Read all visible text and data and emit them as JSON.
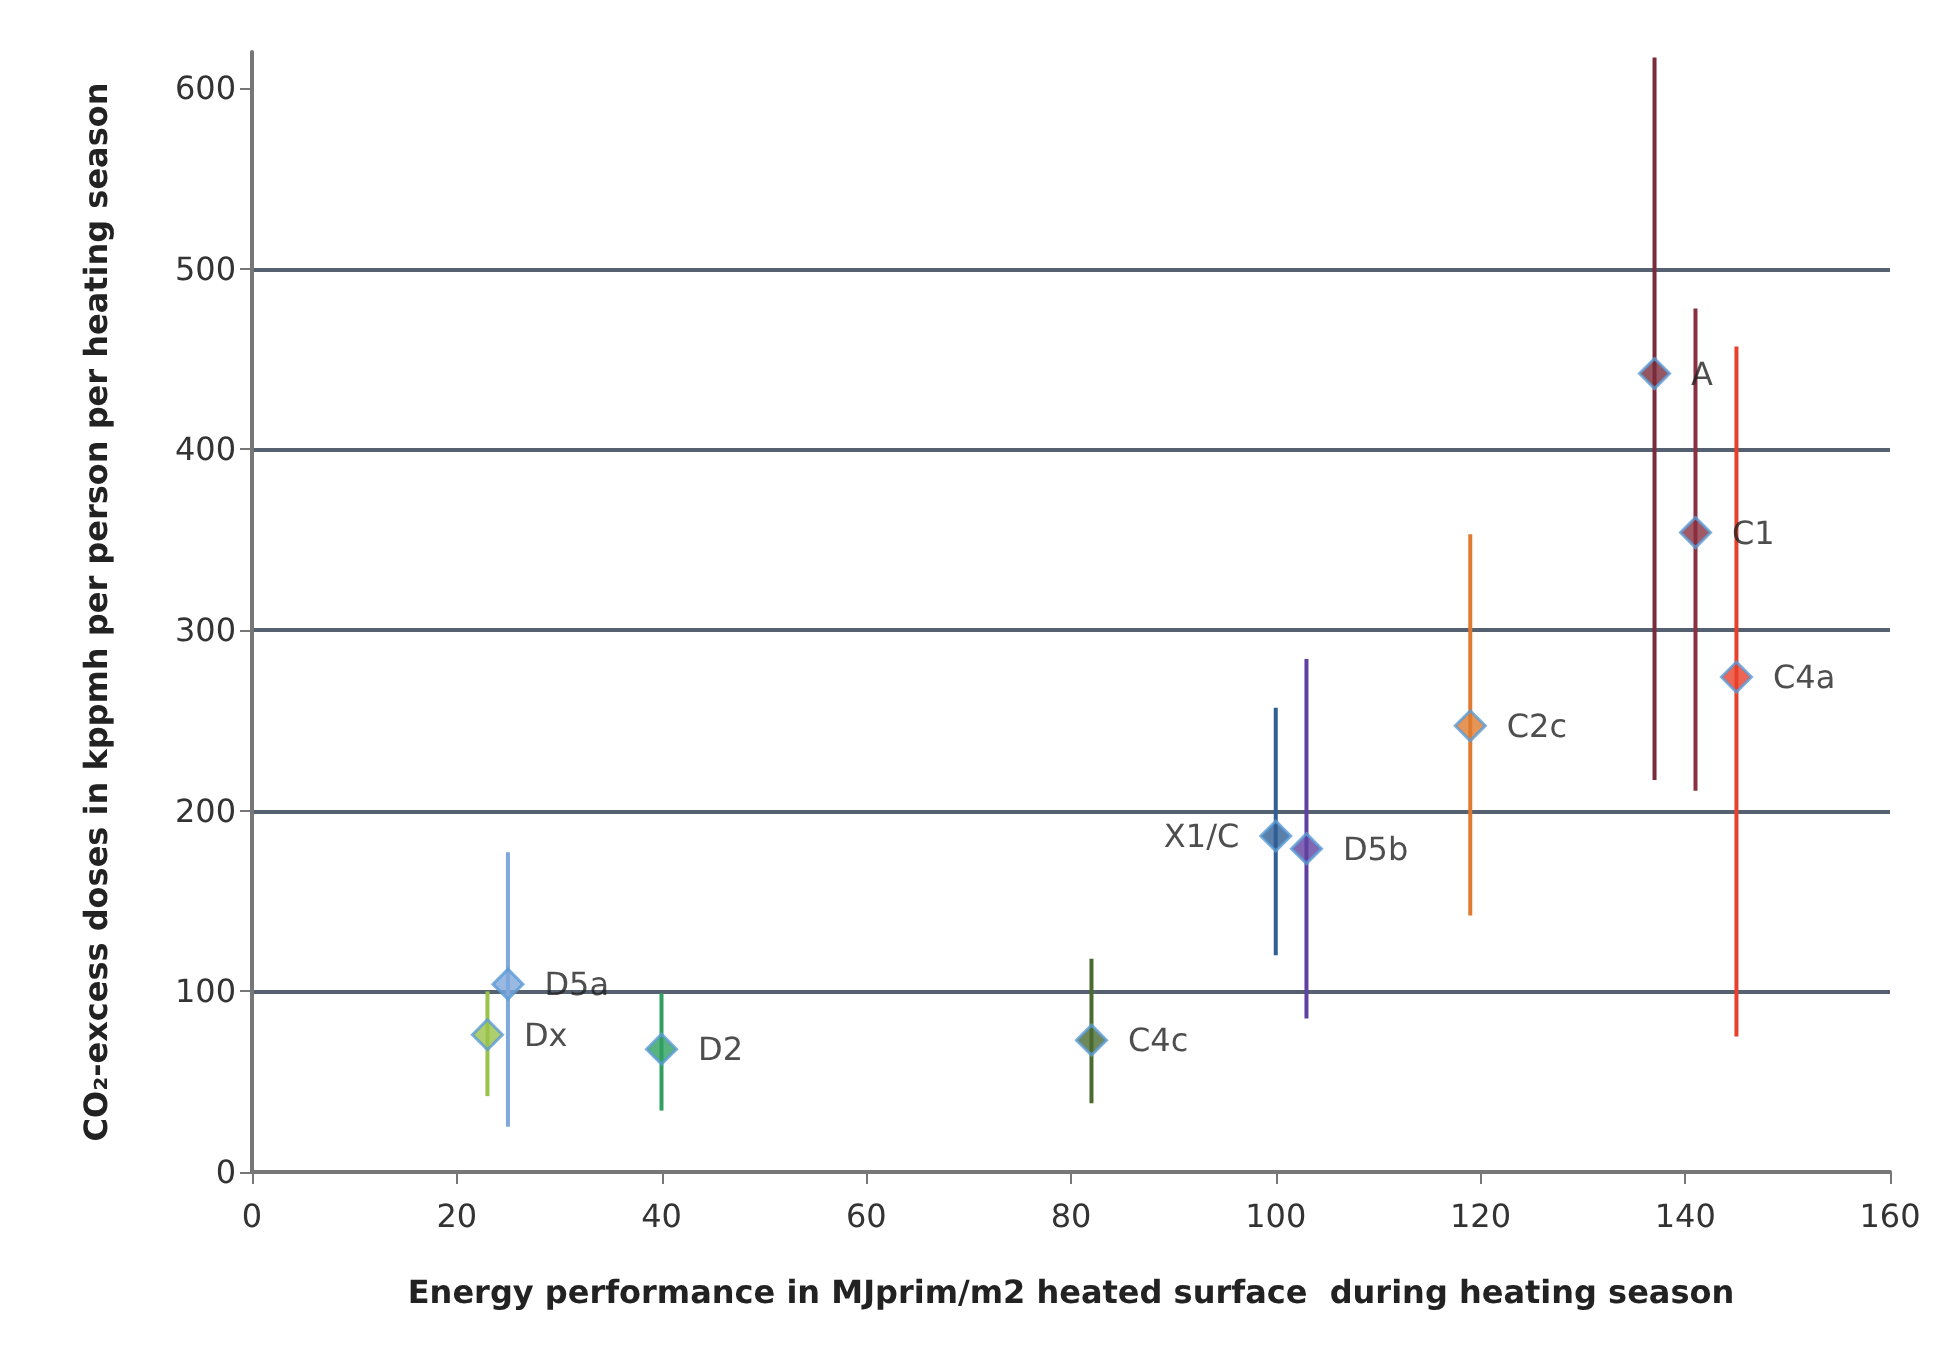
{
  "chart_data": {
    "type": "scatter",
    "xlabel": "Energy performance in MJprim/m2 heated surface  during heating season",
    "ylabel": "CO₂-excess doses in kppmh per person per heating season",
    "xlim": [
      0,
      160
    ],
    "xticks": [
      0,
      20,
      40,
      60,
      80,
      100,
      120,
      140,
      160
    ],
    "ylim": [
      0,
      620
    ],
    "yticks": [
      0,
      100,
      200,
      300,
      400,
      500,
      600
    ],
    "grid": "y",
    "marker": "diamond",
    "legend": false,
    "series": [
      {
        "name": "A",
        "color": "#7b2a3a",
        "x": [
          137
        ],
        "values": [
          442
        ],
        "errors": [
          [
            217,
            617
          ]
        ]
      },
      {
        "name": "C1",
        "color": "#8b3040",
        "x": [
          141
        ],
        "values": [
          354
        ],
        "errors": [
          [
            211,
            478
          ]
        ]
      },
      {
        "name": "C4a",
        "color": "#e8402a",
        "x": [
          145
        ],
        "values": [
          274
        ],
        "errors": [
          [
            75,
            457
          ]
        ]
      },
      {
        "name": "C2c",
        "color": "#e07a30",
        "x": [
          119
        ],
        "values": [
          247
        ],
        "errors": [
          [
            142,
            353
          ]
        ]
      },
      {
        "name": "X1/C",
        "color": "#2f5f95",
        "x": [
          100
        ],
        "values": [
          186
        ],
        "errors": [
          [
            120,
            257
          ]
        ]
      },
      {
        "name": "D5b",
        "color": "#6040a0",
        "x": [
          103
        ],
        "values": [
          179
        ],
        "errors": [
          [
            85,
            284
          ]
        ]
      },
      {
        "name": "C4c",
        "color": "#4a6a30",
        "x": [
          82
        ],
        "values": [
          73
        ],
        "errors": [
          [
            38,
            118
          ]
        ]
      },
      {
        "name": "D5a",
        "color": "#7fa8dc",
        "x": [
          25
        ],
        "values": [
          104
        ],
        "errors": [
          [
            25,
            177
          ]
        ]
      },
      {
        "name": "Dx",
        "color": "#9bc24a",
        "x": [
          23
        ],
        "values": [
          76
        ],
        "errors": [
          [
            42,
            100
          ]
        ]
      },
      {
        "name": "D2",
        "color": "#2fa060",
        "x": [
          40
        ],
        "values": [
          68
        ],
        "errors": [
          [
            34,
            99
          ]
        ]
      }
    ]
  }
}
